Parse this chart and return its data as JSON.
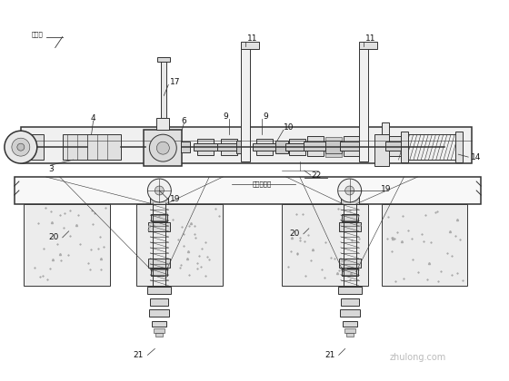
{
  "bg_color": "#ffffff",
  "line_color": "#333333",
  "label_color": "#111111",
  "watermark": "zhulong.com",
  "fig_width": 5.6,
  "fig_height": 4.2,
  "dpi": 100
}
